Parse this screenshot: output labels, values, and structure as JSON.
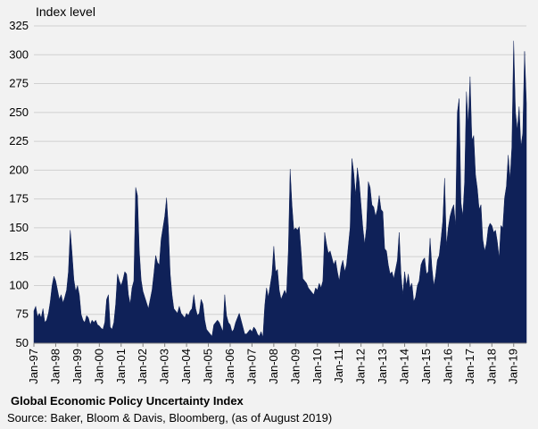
{
  "figure": {
    "title": "Global Economic Policy Uncertainty Index",
    "source": "Source: Baker, Bloom & Davis, Bloomberg, (as of August 2019)"
  },
  "chart_data": {
    "type": "area",
    "title": "Global Economic Policy Uncertainty Index",
    "ylabel": "Index level",
    "xlabel": "",
    "ylim": [
      50,
      325
    ],
    "yticks": [
      50,
      75,
      100,
      125,
      150,
      175,
      200,
      225,
      250,
      275,
      300,
      325
    ],
    "xlim": [
      "1997-01",
      "2019-08"
    ],
    "xtick_labels": [
      "Jan-97",
      "Jan-98",
      "Jan-99",
      "Jan-00",
      "Jan-01",
      "Jan-02",
      "Jan-03",
      "Jan-04",
      "Jan-05",
      "Jan-06",
      "Jan-07",
      "Jan-08",
      "Jan-09",
      "Jan-10",
      "Jan-11",
      "Jan-12",
      "Jan-13",
      "Jan-14",
      "Jan-15",
      "Jan-16",
      "Jan-17",
      "Jan-18",
      "Jan-19"
    ],
    "grid": true,
    "legend": "none",
    "series": [
      {
        "color": "#0f2158",
        "points": [
          [
            "1997-01",
            78
          ],
          [
            "1997-02",
            82
          ],
          [
            "1997-03",
            73
          ],
          [
            "1997-04",
            76
          ],
          [
            "1997-05",
            72
          ],
          [
            "1997-06",
            80
          ],
          [
            "1997-07",
            68
          ],
          [
            "1997-08",
            70
          ],
          [
            "1997-09",
            76
          ],
          [
            "1997-10",
            86
          ],
          [
            "1997-11",
            100
          ],
          [
            "1997-12",
            108
          ],
          [
            "1998-01",
            104
          ],
          [
            "1998-02",
            96
          ],
          [
            "1998-03",
            88
          ],
          [
            "1998-04",
            92
          ],
          [
            "1998-05",
            85
          ],
          [
            "1998-06",
            90
          ],
          [
            "1998-07",
            96
          ],
          [
            "1998-08",
            112
          ],
          [
            "1998-09",
            148
          ],
          [
            "1998-10",
            128
          ],
          [
            "1998-11",
            105
          ],
          [
            "1998-12",
            95
          ],
          [
            "1999-01",
            100
          ],
          [
            "1999-02",
            92
          ],
          [
            "1999-03",
            75
          ],
          [
            "1999-04",
            70
          ],
          [
            "1999-05",
            68
          ],
          [
            "1999-06",
            74
          ],
          [
            "1999-07",
            72
          ],
          [
            "1999-08",
            66
          ],
          [
            "1999-09",
            70
          ],
          [
            "1999-10",
            68
          ],
          [
            "1999-11",
            70
          ],
          [
            "1999-12",
            66
          ],
          [
            "2000-01",
            65
          ],
          [
            "2000-02",
            63
          ],
          [
            "2000-03",
            62
          ],
          [
            "2000-04",
            68
          ],
          [
            "2000-05",
            88
          ],
          [
            "2000-06",
            92
          ],
          [
            "2000-07",
            64
          ],
          [
            "2000-08",
            62
          ],
          [
            "2000-09",
            68
          ],
          [
            "2000-10",
            84
          ],
          [
            "2000-11",
            110
          ],
          [
            "2000-12",
            104
          ],
          [
            "2001-01",
            100
          ],
          [
            "2001-02",
            105
          ],
          [
            "2001-03",
            112
          ],
          [
            "2001-04",
            110
          ],
          [
            "2001-05",
            92
          ],
          [
            "2001-06",
            84
          ],
          [
            "2001-07",
            98
          ],
          [
            "2001-08",
            104
          ],
          [
            "2001-09",
            185
          ],
          [
            "2001-10",
            178
          ],
          [
            "2001-11",
            130
          ],
          [
            "2001-12",
            105
          ],
          [
            "2002-01",
            95
          ],
          [
            "2002-02",
            90
          ],
          [
            "2002-03",
            85
          ],
          [
            "2002-04",
            80
          ],
          [
            "2002-05",
            88
          ],
          [
            "2002-06",
            96
          ],
          [
            "2002-07",
            110
          ],
          [
            "2002-08",
            126
          ],
          [
            "2002-09",
            120
          ],
          [
            "2002-10",
            118
          ],
          [
            "2002-11",
            140
          ],
          [
            "2002-12",
            150
          ],
          [
            "2003-01",
            160
          ],
          [
            "2003-02",
            176
          ],
          [
            "2003-03",
            150
          ],
          [
            "2003-04",
            110
          ],
          [
            "2003-05",
            92
          ],
          [
            "2003-06",
            80
          ],
          [
            "2003-07",
            78
          ],
          [
            "2003-08",
            76
          ],
          [
            "2003-09",
            82
          ],
          [
            "2003-10",
            76
          ],
          [
            "2003-11",
            74
          ],
          [
            "2003-12",
            72
          ],
          [
            "2004-01",
            76
          ],
          [
            "2004-02",
            74
          ],
          [
            "2004-03",
            78
          ],
          [
            "2004-04",
            80
          ],
          [
            "2004-05",
            92
          ],
          [
            "2004-06",
            80
          ],
          [
            "2004-07",
            74
          ],
          [
            "2004-08",
            76
          ],
          [
            "2004-09",
            88
          ],
          [
            "2004-10",
            84
          ],
          [
            "2004-11",
            70
          ],
          [
            "2004-12",
            62
          ],
          [
            "2005-01",
            60
          ],
          [
            "2005-02",
            58
          ],
          [
            "2005-03",
            56
          ],
          [
            "2005-04",
            66
          ],
          [
            "2005-05",
            68
          ],
          [
            "2005-06",
            70
          ],
          [
            "2005-07",
            68
          ],
          [
            "2005-08",
            64
          ],
          [
            "2005-09",
            60
          ],
          [
            "2005-10",
            92
          ],
          [
            "2005-11",
            74
          ],
          [
            "2005-12",
            68
          ],
          [
            "2006-01",
            66
          ],
          [
            "2006-02",
            60
          ],
          [
            "2006-03",
            62
          ],
          [
            "2006-04",
            68
          ],
          [
            "2006-05",
            72
          ],
          [
            "2006-06",
            76
          ],
          [
            "2006-07",
            70
          ],
          [
            "2006-08",
            64
          ],
          [
            "2006-09",
            58
          ],
          [
            "2006-10",
            58
          ],
          [
            "2006-11",
            60
          ],
          [
            "2006-12",
            62
          ],
          [
            "2007-01",
            60
          ],
          [
            "2007-02",
            64
          ],
          [
            "2007-03",
            62
          ],
          [
            "2007-04",
            58
          ],
          [
            "2007-05",
            56
          ],
          [
            "2007-06",
            60
          ],
          [
            "2007-07",
            55
          ],
          [
            "2007-08",
            82
          ],
          [
            "2007-09",
            98
          ],
          [
            "2007-10",
            90
          ],
          [
            "2007-11",
            100
          ],
          [
            "2007-12",
            110
          ],
          [
            "2008-01",
            134
          ],
          [
            "2008-02",
            112
          ],
          [
            "2008-03",
            114
          ],
          [
            "2008-04",
            96
          ],
          [
            "2008-05",
            88
          ],
          [
            "2008-06",
            92
          ],
          [
            "2008-07",
            96
          ],
          [
            "2008-08",
            92
          ],
          [
            "2008-09",
            130
          ],
          [
            "2008-10",
            201
          ],
          [
            "2008-11",
            170
          ],
          [
            "2008-12",
            148
          ],
          [
            "2009-01",
            150
          ],
          [
            "2009-02",
            148
          ],
          [
            "2009-03",
            151
          ],
          [
            "2009-04",
            130
          ],
          [
            "2009-05",
            106
          ],
          [
            "2009-06",
            104
          ],
          [
            "2009-07",
            102
          ],
          [
            "2009-08",
            98
          ],
          [
            "2009-09",
            96
          ],
          [
            "2009-10",
            94
          ],
          [
            "2009-11",
            92
          ],
          [
            "2009-12",
            98
          ],
          [
            "2010-01",
            96
          ],
          [
            "2010-02",
            102
          ],
          [
            "2010-03",
            98
          ],
          [
            "2010-04",
            104
          ],
          [
            "2010-05",
            146
          ],
          [
            "2010-06",
            136
          ],
          [
            "2010-07",
            128
          ],
          [
            "2010-08",
            130
          ],
          [
            "2010-09",
            124
          ],
          [
            "2010-10",
            118
          ],
          [
            "2010-11",
            122
          ],
          [
            "2010-12",
            112
          ],
          [
            "2011-01",
            104
          ],
          [
            "2011-02",
            116
          ],
          [
            "2011-03",
            122
          ],
          [
            "2011-04",
            112
          ],
          [
            "2011-05",
            118
          ],
          [
            "2011-06",
            134
          ],
          [
            "2011-07",
            150
          ],
          [
            "2011-08",
            210
          ],
          [
            "2011-09",
            198
          ],
          [
            "2011-10",
            178
          ],
          [
            "2011-11",
            202
          ],
          [
            "2011-12",
            190
          ],
          [
            "2012-01",
            170
          ],
          [
            "2012-02",
            150
          ],
          [
            "2012-03",
            136
          ],
          [
            "2012-04",
            150
          ],
          [
            "2012-05",
            190
          ],
          [
            "2012-06",
            185
          ],
          [
            "2012-07",
            170
          ],
          [
            "2012-08",
            168
          ],
          [
            "2012-09",
            160
          ],
          [
            "2012-10",
            166
          ],
          [
            "2012-11",
            178
          ],
          [
            "2012-12",
            166
          ],
          [
            "2013-01",
            164
          ],
          [
            "2013-02",
            132
          ],
          [
            "2013-03",
            130
          ],
          [
            "2013-04",
            118
          ],
          [
            "2013-05",
            110
          ],
          [
            "2013-06",
            112
          ],
          [
            "2013-07",
            106
          ],
          [
            "2013-08",
            114
          ],
          [
            "2013-09",
            122
          ],
          [
            "2013-10",
            146
          ],
          [
            "2013-11",
            110
          ],
          [
            "2013-12",
            92
          ],
          [
            "2014-01",
            112
          ],
          [
            "2014-02",
            100
          ],
          [
            "2014-03",
            110
          ],
          [
            "2014-04",
            98
          ],
          [
            "2014-05",
            102
          ],
          [
            "2014-06",
            86
          ],
          [
            "2014-07",
            90
          ],
          [
            "2014-08",
            100
          ],
          [
            "2014-09",
            104
          ],
          [
            "2014-10",
            118
          ],
          [
            "2014-11",
            122
          ],
          [
            "2014-12",
            124
          ],
          [
            "2015-01",
            110
          ],
          [
            "2015-02",
            112
          ],
          [
            "2015-03",
            141
          ],
          [
            "2015-04",
            116
          ],
          [
            "2015-05",
            100
          ],
          [
            "2015-06",
            108
          ],
          [
            "2015-07",
            122
          ],
          [
            "2015-08",
            126
          ],
          [
            "2015-09",
            140
          ],
          [
            "2015-10",
            156
          ],
          [
            "2015-11",
            193
          ],
          [
            "2015-12",
            134
          ],
          [
            "2016-01",
            150
          ],
          [
            "2016-02",
            160
          ],
          [
            "2016-03",
            166
          ],
          [
            "2016-04",
            170
          ],
          [
            "2016-05",
            152
          ],
          [
            "2016-06",
            250
          ],
          [
            "2016-07",
            262
          ],
          [
            "2016-08",
            172
          ],
          [
            "2016-09",
            160
          ],
          [
            "2016-10",
            190
          ],
          [
            "2016-11",
            268
          ],
          [
            "2016-12",
            240
          ],
          [
            "2017-01",
            281
          ],
          [
            "2017-02",
            226
          ],
          [
            "2017-03",
            230
          ],
          [
            "2017-04",
            196
          ],
          [
            "2017-05",
            184
          ],
          [
            "2017-06",
            166
          ],
          [
            "2017-07",
            170
          ],
          [
            "2017-08",
            140
          ],
          [
            "2017-09",
            130
          ],
          [
            "2017-10",
            136
          ],
          [
            "2017-11",
            150
          ],
          [
            "2017-12",
            154
          ],
          [
            "2018-01",
            152
          ],
          [
            "2018-02",
            146
          ],
          [
            "2018-03",
            148
          ],
          [
            "2018-04",
            138
          ],
          [
            "2018-05",
            124
          ],
          [
            "2018-06",
            152
          ],
          [
            "2018-07",
            150
          ],
          [
            "2018-08",
            176
          ],
          [
            "2018-09",
            186
          ],
          [
            "2018-10",
            213
          ],
          [
            "2018-11",
            192
          ],
          [
            "2018-12",
            220
          ],
          [
            "2019-01",
            312
          ],
          [
            "2019-02",
            250
          ],
          [
            "2019-03",
            235
          ],
          [
            "2019-04",
            255
          ],
          [
            "2019-05",
            220
          ],
          [
            "2019-06",
            232
          ],
          [
            "2019-07",
            303
          ],
          [
            "2019-08",
            258
          ]
        ]
      }
    ]
  }
}
